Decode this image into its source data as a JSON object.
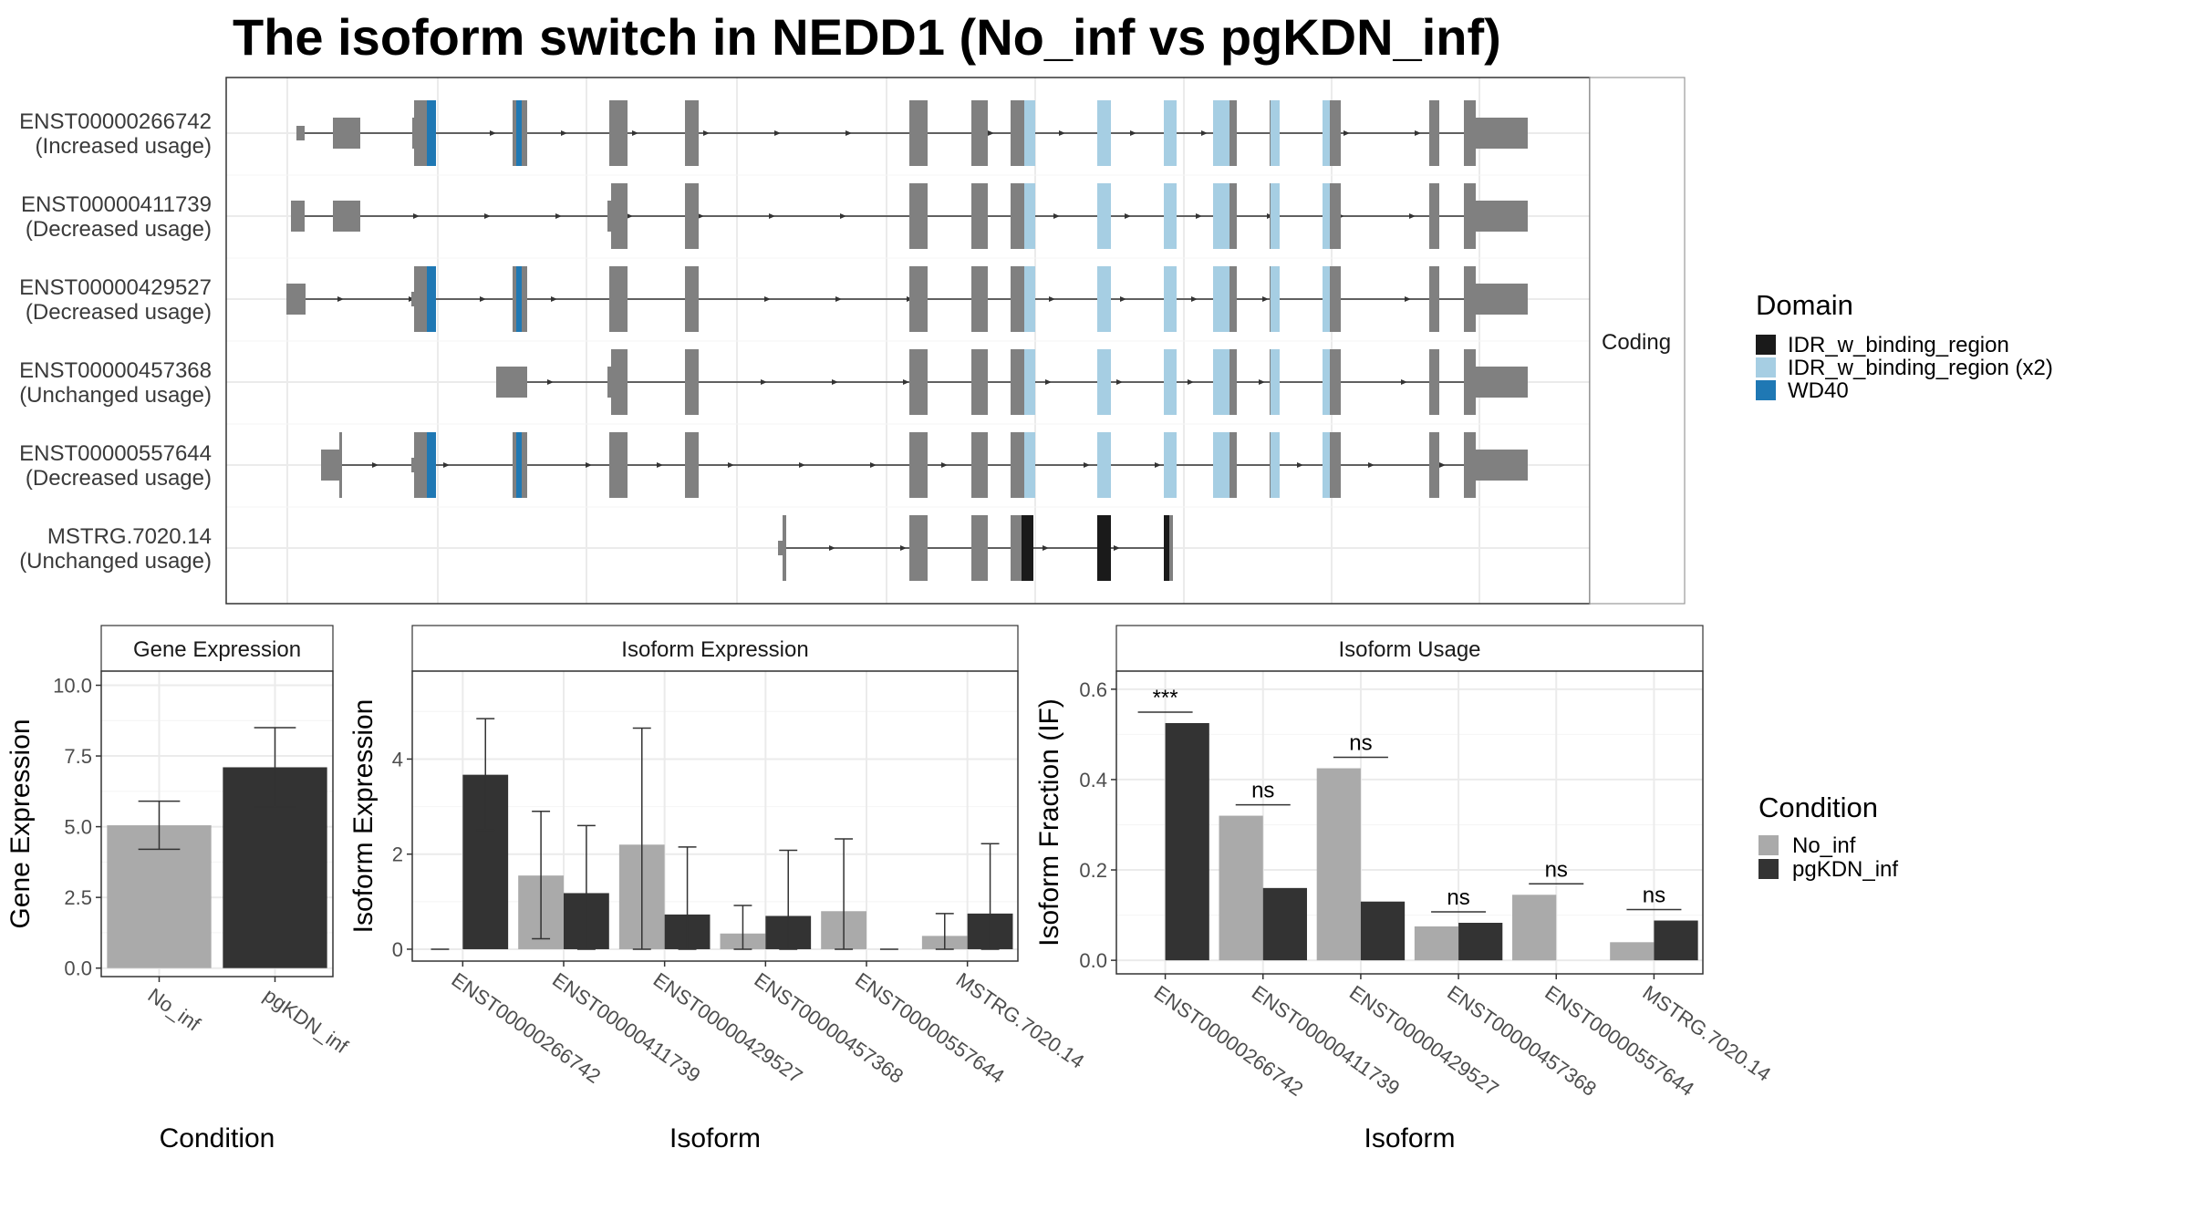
{
  "title": "The isoform switch in NEDD1 (No_inf vs pgKDN_inf)",
  "colors": {
    "exon": "#808080",
    "IDR_w_binding_region": "#1a1a1a",
    "IDR_w_binding_region (x2)": "#a6cee3",
    "WD40": "#1f78b4",
    "No_inf": "#aaaaaa",
    "pgKDN_inf": "#333333",
    "grid": "#ebebeb"
  },
  "strip_coding": "Coding",
  "transcripts": [
    {
      "id": "ENST00000266742",
      "usage": "(Increased usage)"
    },
    {
      "id": "ENST00000411739",
      "usage": "(Decreased usage)"
    },
    {
      "id": "ENST00000429527",
      "usage": "(Decreased usage)"
    },
    {
      "id": "ENST00000457368",
      "usage": "(Unchanged usage)"
    },
    {
      "id": "ENST00000557644",
      "usage": "(Decreased usage)"
    },
    {
      "id": "MSTRG.7020.14",
      "usage": "(Unchanged usage)"
    }
  ],
  "legend_domain": {
    "title": "Domain",
    "items": [
      "IDR_w_binding_region",
      "IDR_w_binding_region (x2)",
      "WD40"
    ]
  },
  "legend_condition": {
    "title": "Condition",
    "items": [
      "No_inf",
      "pgKDN_inf"
    ]
  },
  "chart_data": [
    {
      "type": "bar",
      "strip": "Gene Expression",
      "xlabel": "Condition",
      "ylabel": "Gene Expression",
      "categories": [
        "No_inf",
        "pgKDN_inf"
      ],
      "values": [
        5.05,
        7.1
      ],
      "error_low": [
        4.2,
        5.7
      ],
      "error_high": [
        5.9,
        8.5
      ],
      "ylim": [
        -0.3,
        10.5
      ],
      "yticks": [
        "0.0",
        "2.5",
        "5.0",
        "7.5",
        "10.0"
      ]
    },
    {
      "type": "bar",
      "strip": "Isoform Expression",
      "xlabel": "Isoform",
      "ylabel": "Isoform Expression",
      "categories": [
        "ENST00000266742",
        "ENST00000411739",
        "ENST00000429527",
        "ENST00000457368",
        "ENST00000557644",
        "MSTRG.7020.14"
      ],
      "series": [
        {
          "name": "No_inf",
          "values": [
            0,
            1.55,
            2.2,
            0.33,
            0.8,
            0.28
          ],
          "error_low": [
            0,
            0.22,
            0,
            0,
            0,
            0
          ],
          "error_high": [
            0,
            2.9,
            4.65,
            0.92,
            2.32,
            0.75
          ]
        },
        {
          "name": "pgKDN_inf",
          "values": [
            3.67,
            1.18,
            0.73,
            0.7,
            0,
            0.75
          ],
          "error_low": [
            2.5,
            0,
            0,
            0,
            0,
            0
          ],
          "error_high": [
            4.85,
            2.6,
            2.15,
            2.08,
            0,
            2.22
          ]
        }
      ],
      "ylim": [
        -0.25,
        5.85
      ],
      "yticks": [
        "0",
        "2",
        "4"
      ]
    },
    {
      "type": "bar",
      "strip": "Isoform Usage",
      "xlabel": "Isoform",
      "ylabel": "Isoform Fraction (IF)",
      "categories": [
        "ENST00000266742",
        "ENST00000411739",
        "ENST00000429527",
        "ENST00000457368",
        "ENST00000557644",
        "MSTRG.7020.14"
      ],
      "series": [
        {
          "name": "No_inf",
          "values": [
            0,
            0.32,
            0.425,
            0.075,
            0.145,
            0.04
          ]
        },
        {
          "name": "pgKDN_inf",
          "values": [
            0.525,
            0.16,
            0.13,
            0.083,
            0,
            0.088
          ]
        }
      ],
      "significance": [
        "***",
        "ns",
        "ns",
        "ns",
        "ns",
        "ns"
      ],
      "ylim": [
        -0.03,
        0.64
      ],
      "yticks": [
        "0.0",
        "0.2",
        "0.4",
        "0.6"
      ]
    }
  ]
}
